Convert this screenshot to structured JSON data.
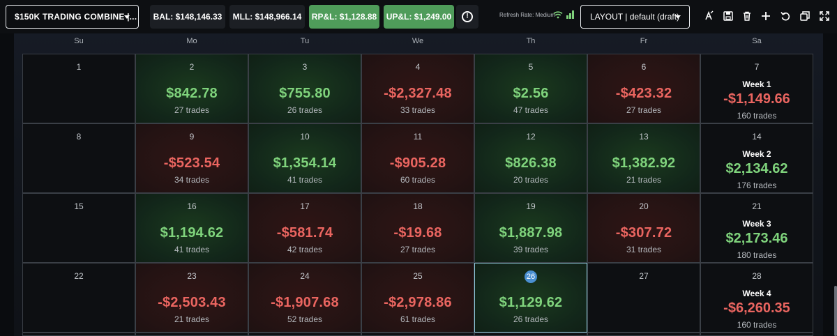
{
  "header": {
    "account_label": "$150K TRADING COMBINE |...",
    "balance": "BAL: $148,146.33",
    "mll": "MLL: $148,966.14",
    "rpl": "RP&L: $1,128.88",
    "upl": "UP&L: $1,249.00",
    "alert_glyph": "!",
    "refresh_rate": "Refresh Rate: Medium",
    "layout_label": "LAYOUT | default (draft)",
    "colors": {
      "positive": "#4f9c5a",
      "gain_text": "#7fd37c",
      "loss_text": "#ea6560",
      "today": "#4a8fd1"
    },
    "tools": [
      "clear-formatting-icon",
      "save-icon",
      "trash-icon",
      "plus-icon",
      "undo-icon",
      "window-restore-icon",
      "fullscreen-icon"
    ]
  },
  "calendar": {
    "weekdays": [
      "Su",
      "Mo",
      "Tu",
      "We",
      "Th",
      "Fr",
      "Sa"
    ],
    "weeks": [
      {
        "days": [
          {
            "day": "1",
            "status": "neutral"
          },
          {
            "day": "2",
            "pnl": "$842.78",
            "trades": "27 trades",
            "status": "pos"
          },
          {
            "day": "3",
            "pnl": "$755.80",
            "trades": "26 trades",
            "status": "pos"
          },
          {
            "day": "4",
            "pnl": "-$2,327.48",
            "trades": "33 trades",
            "status": "neg"
          },
          {
            "day": "5",
            "pnl": "$2.56",
            "trades": "47 trades",
            "status": "pos"
          },
          {
            "day": "6",
            "pnl": "-$423.32",
            "trades": "27 trades",
            "status": "neg"
          }
        ],
        "summary": {
          "day": "7",
          "title": "Week 1",
          "pnl": "-$1,149.66",
          "trades": "160 trades",
          "status": "neg"
        }
      },
      {
        "days": [
          {
            "day": "8",
            "status": "neutral"
          },
          {
            "day": "9",
            "pnl": "-$523.54",
            "trades": "34 trades",
            "status": "neg"
          },
          {
            "day": "10",
            "pnl": "$1,354.14",
            "trades": "41 trades",
            "status": "pos"
          },
          {
            "day": "11",
            "pnl": "-$905.28",
            "trades": "60 trades",
            "status": "neg"
          },
          {
            "day": "12",
            "pnl": "$826.38",
            "trades": "20 trades",
            "status": "pos"
          },
          {
            "day": "13",
            "pnl": "$1,382.92",
            "trades": "21 trades",
            "status": "pos"
          }
        ],
        "summary": {
          "day": "14",
          "title": "Week 2",
          "pnl": "$2,134.62",
          "trades": "176 trades",
          "status": "pos"
        }
      },
      {
        "days": [
          {
            "day": "15",
            "status": "neutral"
          },
          {
            "day": "16",
            "pnl": "$1,194.62",
            "trades": "41 trades",
            "status": "pos"
          },
          {
            "day": "17",
            "pnl": "-$581.74",
            "trades": "42 trades",
            "status": "neg"
          },
          {
            "day": "18",
            "pnl": "-$19.68",
            "trades": "27 trades",
            "status": "neg"
          },
          {
            "day": "19",
            "pnl": "$1,887.98",
            "trades": "39 trades",
            "status": "pos"
          },
          {
            "day": "20",
            "pnl": "-$307.72",
            "trades": "31 trades",
            "status": "neg"
          }
        ],
        "summary": {
          "day": "21",
          "title": "Week 3",
          "pnl": "$2,173.46",
          "trades": "180 trades",
          "status": "pos"
        }
      },
      {
        "days": [
          {
            "day": "22",
            "status": "neutral"
          },
          {
            "day": "23",
            "pnl": "-$2,503.43",
            "trades": "21 trades",
            "status": "neg"
          },
          {
            "day": "24",
            "pnl": "-$1,907.68",
            "trades": "52 trades",
            "status": "neg"
          },
          {
            "day": "25",
            "pnl": "-$2,978.86",
            "trades": "61 trades",
            "status": "neg"
          },
          {
            "day": "26",
            "pnl": "$1,129.62",
            "trades": "26 trades",
            "status": "pos",
            "today": true
          },
          {
            "day": "27",
            "status": "neutral"
          }
        ],
        "summary": {
          "day": "28",
          "title": "Week 4",
          "pnl": "-$6,260.35",
          "trades": "160 trades",
          "status": "neg"
        }
      }
    ]
  }
}
